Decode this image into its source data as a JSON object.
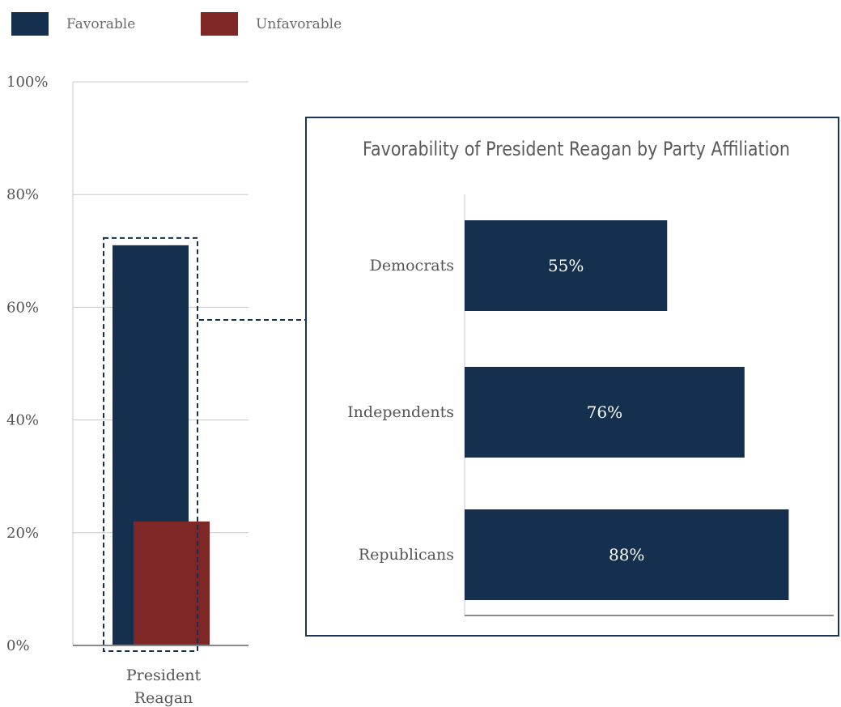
{
  "colors": {
    "favorable": "#15304f",
    "unfavorable": "#7f2626",
    "grid": "#c8c8c8",
    "axis": "#888888",
    "panel_border": "#1b3556",
    "text": "#555555",
    "label_on_bar": "#ffffff"
  },
  "legend": {
    "favorable_label": "Favorable",
    "unfavorable_label": "Unfavorable"
  },
  "chart_data": [
    {
      "type": "bar",
      "title": "",
      "categories": [
        "President Reagan"
      ],
      "category_label_lines": [
        "President",
        "Reagan"
      ],
      "series": [
        {
          "name": "Favorable",
          "values": [
            71
          ]
        },
        {
          "name": "Unfavorable",
          "values": [
            22
          ]
        }
      ],
      "ylim": [
        0,
        100
      ],
      "yticks": [
        0,
        20,
        40,
        60,
        80,
        100
      ],
      "ytick_labels": [
        "0%",
        "20%",
        "40%",
        "60%",
        "80%",
        "100%"
      ],
      "grid": true,
      "legend_position": "top-left",
      "highlight": "Favorable"
    },
    {
      "type": "bar",
      "orientation": "horizontal",
      "title": "Favorability of President Reagan by Party Affiliation",
      "categories": [
        "Democrats",
        "Independents",
        "Republicans"
      ],
      "values": [
        55,
        76,
        88
      ],
      "value_labels": [
        "55%",
        "76%",
        "88%"
      ],
      "grid": false
    }
  ]
}
